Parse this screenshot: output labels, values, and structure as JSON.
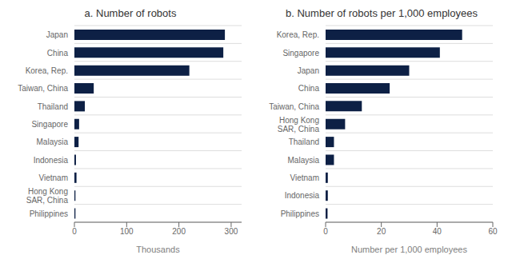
{
  "chart_data": [
    {
      "type": "bar",
      "orientation": "horizontal",
      "title": "a. Number of robots",
      "xlabel": "Thousands",
      "xlim": [
        0,
        320
      ],
      "xticks": [
        0,
        100,
        200,
        300
      ],
      "categories": [
        "Japan",
        "China",
        "Korea, Rep.",
        "Taiwan, China",
        "Thailand",
        "Singapore",
        "Malaysia",
        "Indonesia",
        "Vietnam",
        "Hong Kong\nSAR, China",
        "Philippines"
      ],
      "values": [
        288,
        285,
        220,
        37,
        20,
        9,
        8,
        3,
        4,
        2,
        2
      ],
      "color": "#0d2045",
      "grid": true
    },
    {
      "type": "bar",
      "orientation": "horizontal",
      "title": "b. Number of robots per 1,000 employees",
      "xlabel": "Number per 1,000 employees",
      "xlim": [
        0,
        60
      ],
      "xticks": [
        0,
        20,
        40,
        60
      ],
      "categories": [
        "Korea, Rep.",
        "Singapore",
        "Japan",
        "China",
        "Taiwan, China",
        "Hong Kong\nSAR, China",
        "Thailand",
        "Malaysia",
        "Vietnam",
        "Indonesia",
        "Philippines"
      ],
      "values": [
        49,
        41,
        30,
        23,
        13,
        7,
        3,
        3,
        0.8,
        0.8,
        0.7
      ],
      "color": "#0d2045",
      "grid": true
    }
  ]
}
